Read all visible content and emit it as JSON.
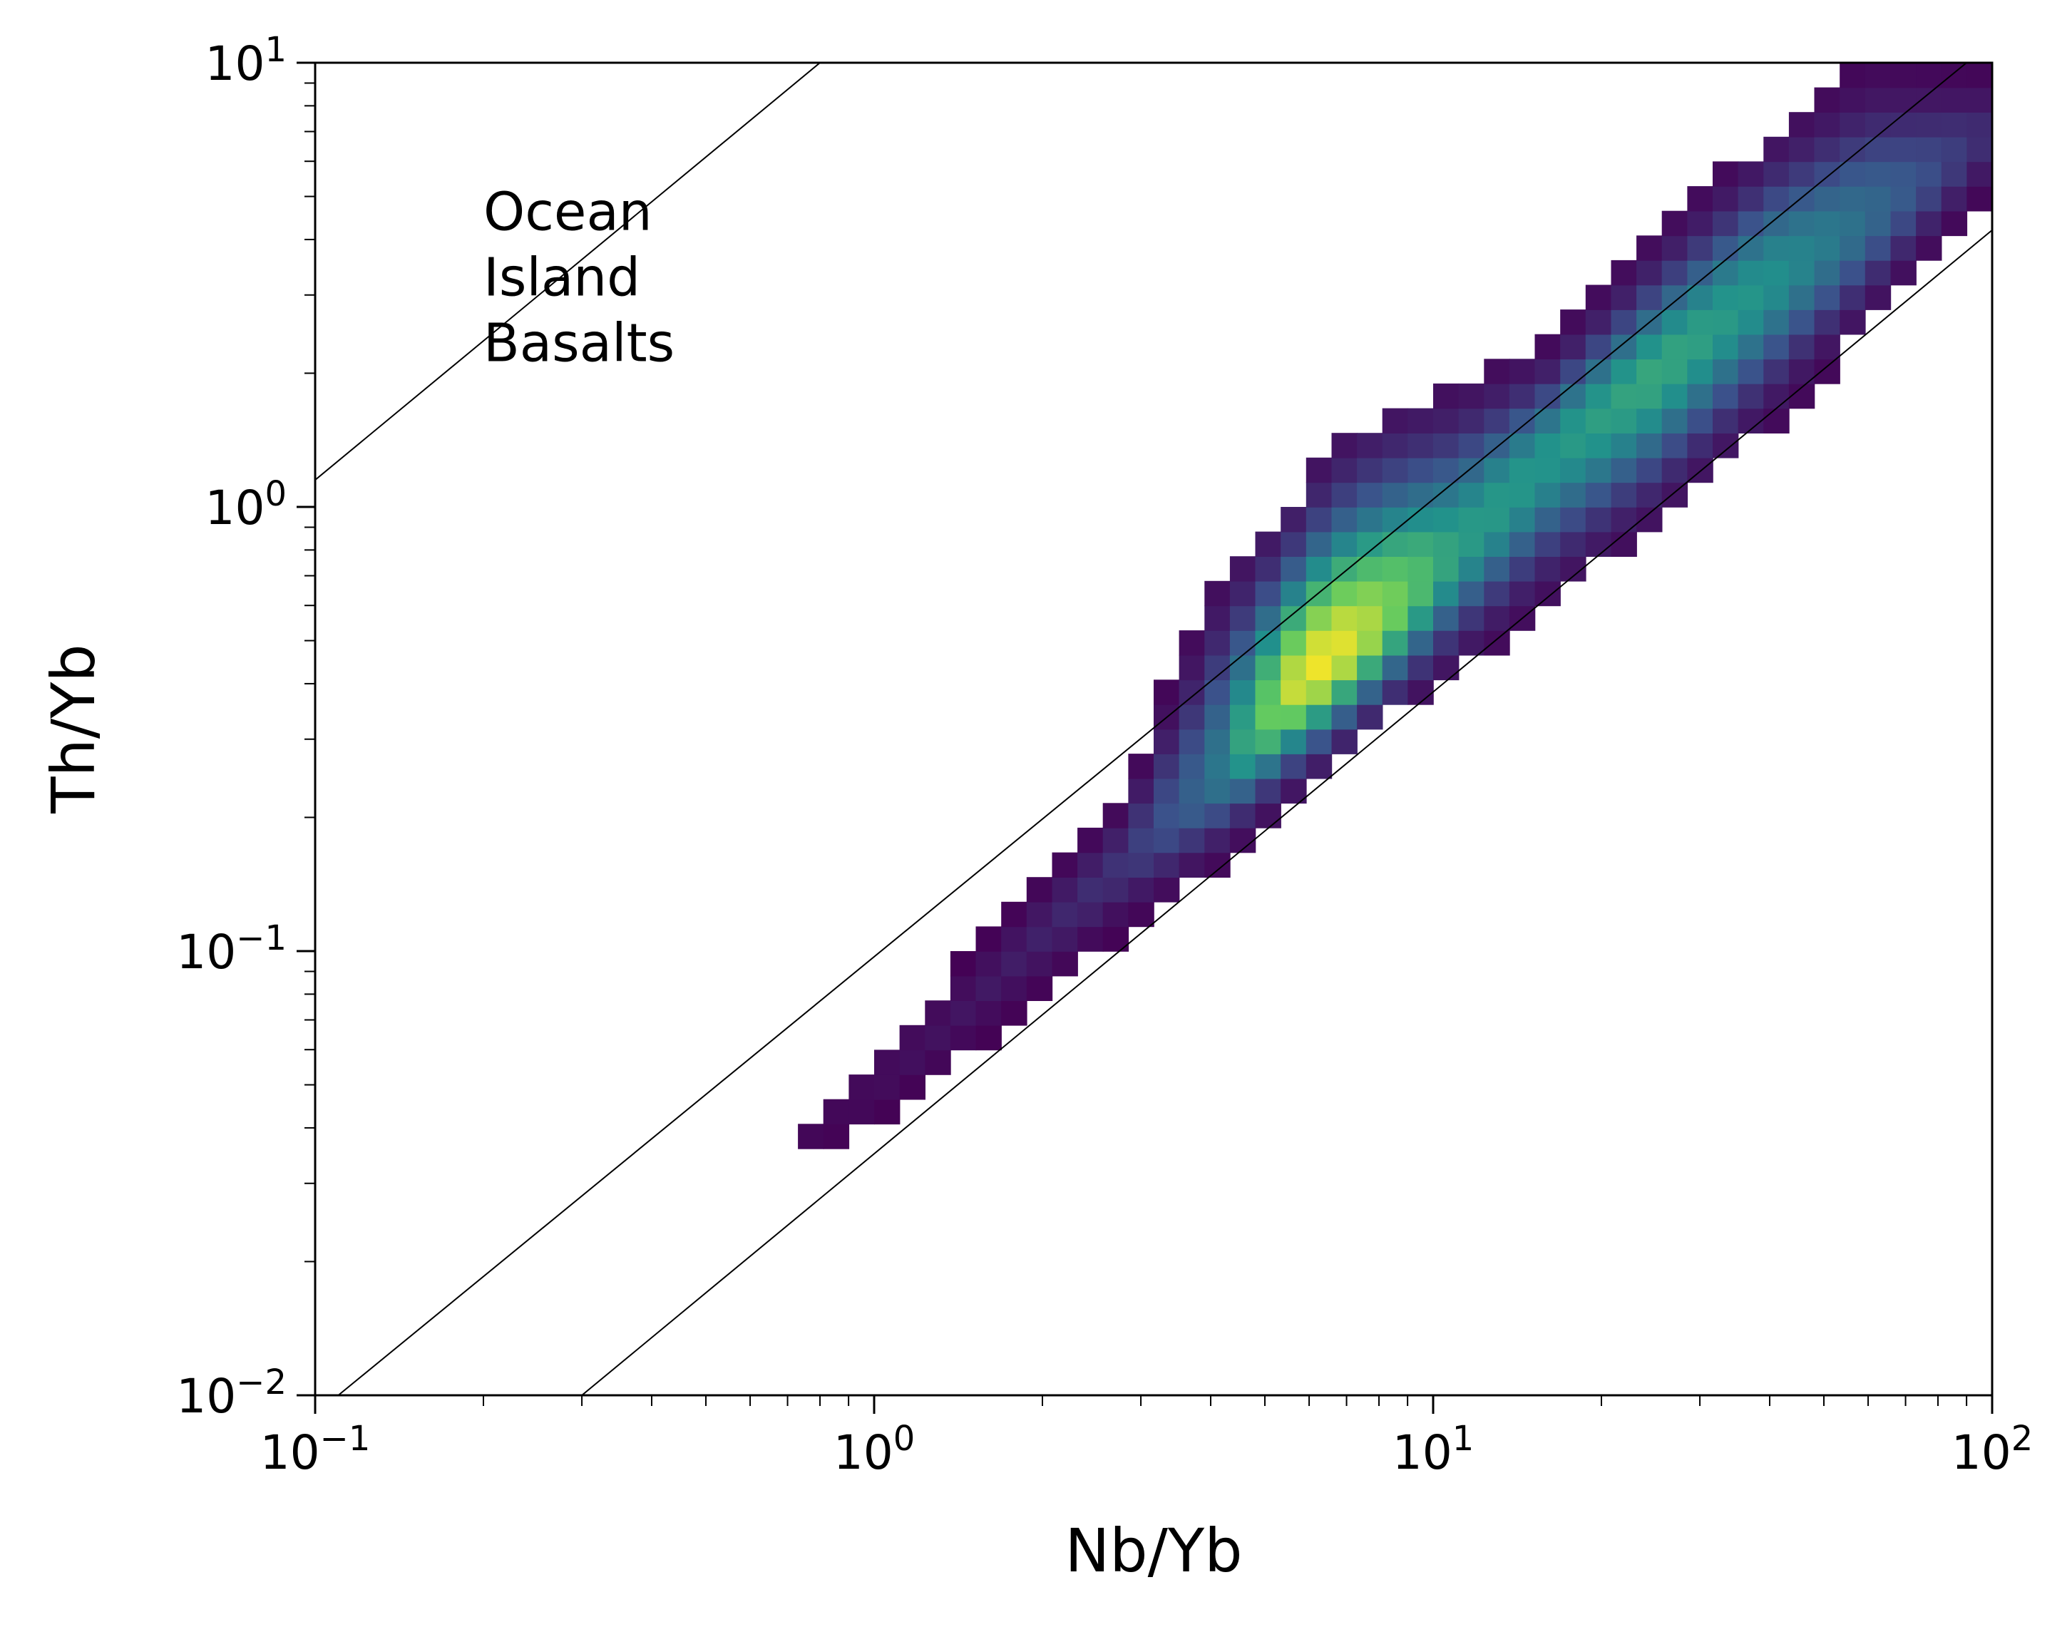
{
  "chart_data": {
    "type": "heatmap",
    "title": "",
    "xlabel": "Nb/Yb",
    "ylabel": "Th/Yb",
    "xscale": "log",
    "yscale": "log",
    "xlim": [
      0.1,
      100
    ],
    "ylim": [
      0.01,
      10
    ],
    "grid": false,
    "colormap": "viridis",
    "colors": [
      "#440154",
      "#3b528b",
      "#21918c",
      "#5ec962",
      "#fde725"
    ],
    "x_ticks": [
      {
        "value": 0.1,
        "base": "10",
        "exp": "−1"
      },
      {
        "value": 1,
        "base": "10",
        "exp": "0"
      },
      {
        "value": 10,
        "base": "10",
        "exp": "1"
      },
      {
        "value": 100,
        "base": "10",
        "exp": "2"
      }
    ],
    "y_ticks": [
      {
        "value": 0.01,
        "base": "10",
        "exp": "−2"
      },
      {
        "value": 0.1,
        "base": "10",
        "exp": "−1"
      },
      {
        "value": 1,
        "base": "10",
        "exp": "0"
      },
      {
        "value": 10,
        "base": "10",
        "exp": "1"
      }
    ],
    "reference_lines": [
      {
        "name": "upper",
        "x": [
          0.1,
          0.8
        ],
        "y": [
          1.15,
          10
        ]
      },
      {
        "name": "mantle-array-top",
        "x": [
          0.11,
          90
        ],
        "y": [
          0.01,
          10
        ]
      },
      {
        "name": "mantle-array-bottom",
        "x": [
          0.3,
          100
        ],
        "y": [
          0.01,
          4.2
        ]
      }
    ],
    "annotation": {
      "lines": [
        "Ocean",
        "Island",
        "Basalts"
      ],
      "x": 0.2,
      "y": 4.2
    },
    "density_ridge": [
      {
        "x": 0.75,
        "y": 0.036,
        "lo": 0.034,
        "hi": 0.04,
        "peak": 0.02
      },
      {
        "x": 1.0,
        "y": 0.05,
        "lo": 0.04,
        "hi": 0.06,
        "peak": 0.04
      },
      {
        "x": 1.4,
        "y": 0.072,
        "lo": 0.055,
        "hi": 0.09,
        "peak": 0.06
      },
      {
        "x": 2.0,
        "y": 0.11,
        "lo": 0.08,
        "hi": 0.15,
        "peak": 0.1
      },
      {
        "x": 2.8,
        "y": 0.16,
        "lo": 0.11,
        "hi": 0.23,
        "peak": 0.16
      },
      {
        "x": 4.0,
        "y": 0.24,
        "lo": 0.15,
        "hi": 0.7,
        "peak": 0.35
      },
      {
        "x": 5.5,
        "y": 0.38,
        "lo": 0.22,
        "hi": 1.0,
        "peak": 0.9
      },
      {
        "x": 6.5,
        "y": 0.45,
        "lo": 0.26,
        "hi": 1.3,
        "peak": 1.0
      },
      {
        "x": 8.0,
        "y": 0.55,
        "lo": 0.32,
        "hi": 1.6,
        "peak": 0.85
      },
      {
        "x": 11.0,
        "y": 0.8,
        "lo": 0.42,
        "hi": 1.9,
        "peak": 0.55
      },
      {
        "x": 16.0,
        "y": 1.3,
        "lo": 0.6,
        "hi": 2.3,
        "peak": 0.52
      },
      {
        "x": 25.0,
        "y": 2.0,
        "lo": 0.9,
        "hi": 4.0,
        "peak": 0.6
      },
      {
        "x": 40.0,
        "y": 3.2,
        "lo": 1.5,
        "hi": 7.0,
        "peak": 0.5
      },
      {
        "x": 60.0,
        "y": 4.5,
        "lo": 2.5,
        "hi": 10.0,
        "peak": 0.35
      },
      {
        "x": 100.0,
        "y": 7.0,
        "lo": 5.0,
        "hi": 10.0,
        "peak": 0.12
      }
    ]
  }
}
